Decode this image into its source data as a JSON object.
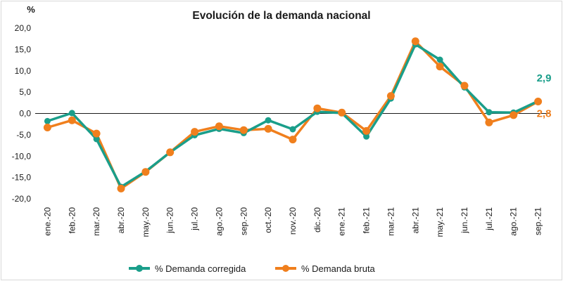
{
  "chart_data": {
    "type": "line",
    "title": "Evolución de la demanda nacional",
    "ylabel": "%",
    "xlabel": "",
    "ylim": [
      -20,
      20
    ],
    "y_ticks": [
      "20,0",
      "15,0",
      "10,0",
      "5,0",
      "0,0",
      "-5,0",
      "-10,0",
      "-15,0",
      "-20,0"
    ],
    "categories": [
      "ene.-20",
      "feb.-20",
      "mar.-20",
      "abr.-20",
      "may.-20",
      "jun.-20",
      "jul.-20",
      "ago.-20",
      "sep.-20",
      "oct.-20",
      "nov.-20",
      "dic.-20",
      "ene.-21",
      "feb.-21",
      "mar.-21",
      "abr.-21",
      "may.-21",
      "jun.-21",
      "jul.-21",
      "ago.-21",
      "sep.-21"
    ],
    "grid": false,
    "legend_position": "bottom",
    "series": [
      {
        "name": "% Demanda corregida",
        "color": "#1a9e8a",
        "values": [
          -1.8,
          0.1,
          -6.0,
          -17.2,
          -13.6,
          -9.1,
          -5.1,
          -3.6,
          -4.6,
          -1.6,
          -3.7,
          0.4,
          0.1,
          -5.4,
          3.5,
          16.2,
          12.6,
          6.1,
          0.3,
          0.2,
          2.9
        ],
        "end_label": "2,9"
      },
      {
        "name": "% Demanda bruta",
        "color": "#f07f1d",
        "values": [
          -3.3,
          -1.6,
          -4.7,
          -17.6,
          -13.7,
          -9.1,
          -4.3,
          -3.0,
          -3.9,
          -3.6,
          -6.1,
          1.2,
          0.2,
          -4.1,
          4.1,
          16.9,
          11.0,
          6.5,
          -2.1,
          -0.4,
          2.8
        ],
        "end_label": "2,8"
      }
    ]
  }
}
